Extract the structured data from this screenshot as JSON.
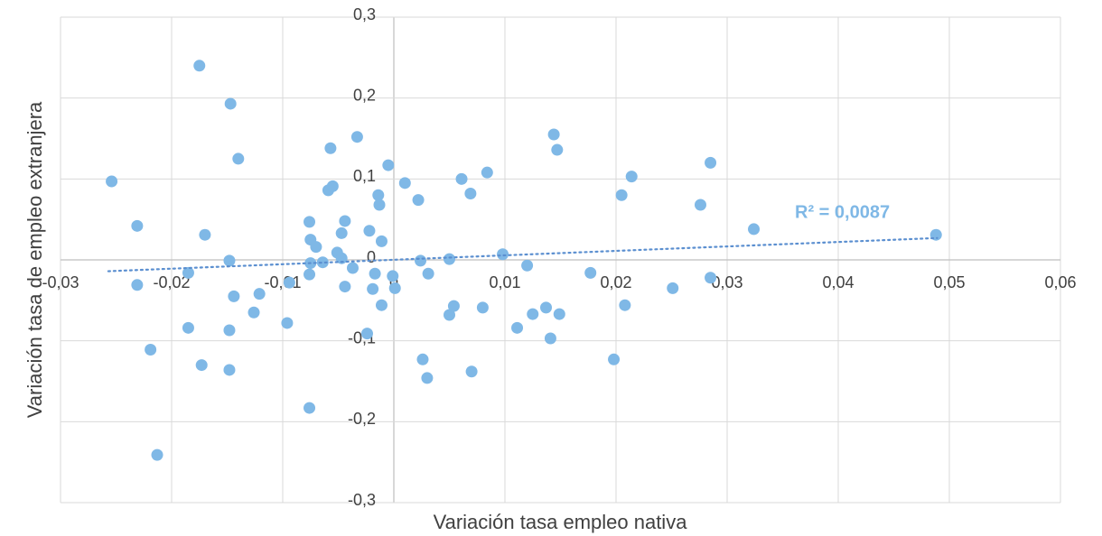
{
  "chart_data": {
    "type": "scatter",
    "xlabel": "Variación tasa empleo nativa",
    "ylabel": "Variación tasa de empleo extranjera",
    "annotation": "R² = 0,0087",
    "color": "#7fb8e6",
    "grid": true,
    "xlim": [
      -0.03,
      0.06
    ],
    "ylim": [
      -0.3,
      0.3
    ],
    "xticks": [
      {
        "value": -0.03,
        "label": "-0,03"
      },
      {
        "value": -0.02,
        "label": "-0,02"
      },
      {
        "value": -0.01,
        "label": "-0,01"
      },
      0,
      {
        "value": 0.01,
        "label": "0,01"
      },
      {
        "value": 0.02,
        "label": "0,02"
      },
      {
        "value": 0.03,
        "label": "0,03"
      },
      {
        "value": 0.04,
        "label": "0,04"
      },
      {
        "value": 0.05,
        "label": "0,05"
      },
      {
        "value": 0.06,
        "label": "0,06"
      }
    ],
    "yticks": [
      {
        "value": -0.3,
        "label": "-0,3"
      },
      {
        "value": -0.2,
        "label": "-0,2"
      },
      {
        "value": -0.1,
        "label": "-0,1"
      },
      0,
      {
        "value": 0.1,
        "label": "0,1"
      },
      {
        "value": 0.2,
        "label": "0,2"
      },
      {
        "value": 0.3,
        "label": "0,3"
      }
    ],
    "trendline": {
      "x": [
        -0.0257,
        0.0489
      ],
      "y": [
        -0.014,
        0.027
      ]
    },
    "x": [
      -0.0254,
      -0.0231,
      -0.0231,
      -0.0219,
      -0.0213,
      -0.0185,
      -0.0185,
      -0.0175,
      -0.0173,
      -0.017,
      -0.0148,
      -0.0148,
      -0.0148,
      -0.0147,
      -0.0144,
      -0.014,
      -0.0126,
      -0.0121,
      -0.0096,
      -0.0094,
      -0.0076,
      -0.0076,
      -0.0076,
      -0.0075,
      -0.0075,
      -0.007,
      -0.0064,
      -0.0059,
      -0.0057,
      -0.0055,
      -0.0051,
      -0.0047,
      -0.0047,
      -0.0044,
      -0.0044,
      -0.0037,
      -0.0033,
      -0.0024,
      -0.0022,
      -0.0019,
      -0.0017,
      -0.0014,
      -0.0013,
      -0.0011,
      -0.0011,
      -0.0005,
      -0.0001,
      0.0001,
      0.001,
      0.0022,
      0.0024,
      0.0026,
      0.003,
      0.0031,
      0.005,
      0.005,
      0.0054,
      0.0061,
      0.0069,
      0.007,
      0.008,
      0.0084,
      0.0098,
      0.0111,
      0.012,
      0.0125,
      0.0137,
      0.0141,
      0.0144,
      0.0147,
      0.0149,
      0.0177,
      0.0198,
      0.0205,
      0.0208,
      0.0214,
      0.0251,
      0.0276,
      0.0285,
      0.0285,
      0.0324,
      0.0488
    ],
    "y": [
      0.097,
      0.042,
      -0.031,
      -0.111,
      -0.241,
      -0.084,
      -0.016,
      0.24,
      -0.13,
      0.031,
      -0.001,
      -0.087,
      -0.136,
      0.193,
      -0.045,
      0.125,
      -0.065,
      -0.042,
      -0.078,
      -0.028,
      -0.183,
      -0.018,
      0.047,
      0.025,
      -0.004,
      0.016,
      -0.003,
      0.086,
      0.138,
      0.091,
      0.009,
      0.002,
      0.033,
      0.048,
      -0.033,
      -0.01,
      0.152,
      -0.091,
      0.036,
      -0.036,
      -0.017,
      0.08,
      0.068,
      0.023,
      -0.056,
      0.117,
      -0.02,
      -0.035,
      0.095,
      0.074,
      -0.001,
      -0.123,
      -0.146,
      -0.017,
      0.001,
      -0.068,
      -0.057,
      0.1,
      0.082,
      -0.138,
      -0.059,
      0.108,
      0.007,
      -0.084,
      -0.007,
      -0.067,
      -0.059,
      -0.097,
      0.155,
      0.136,
      -0.067,
      -0.016,
      -0.123,
      0.08,
      -0.056,
      0.103,
      -0.035,
      0.068,
      -0.022,
      0.12,
      0.038,
      0.031
    ]
  }
}
